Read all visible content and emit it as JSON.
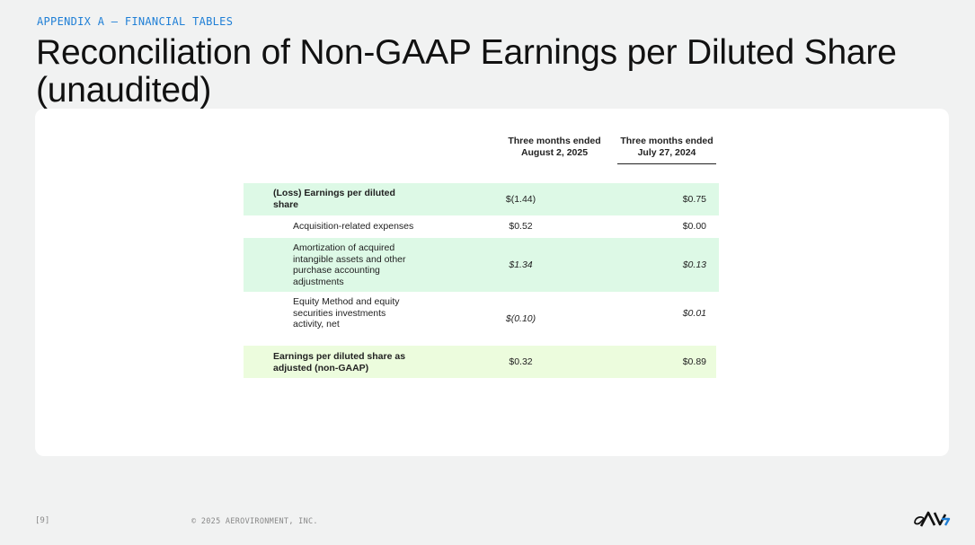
{
  "eyebrow": "APPENDIX A – FINANCIAL TABLES",
  "title": "Reconciliation of Non-GAAP Earnings per Diluted Share (unaudited)",
  "table": {
    "columns": [
      {
        "line1": "Three months ended",
        "line2": "August 2, 2025"
      },
      {
        "line1": "Three months ended",
        "line2": "July 27, 2024"
      }
    ],
    "rows": [
      {
        "label": "(Loss) Earnings per diluted share",
        "v1": "$(1.44)",
        "v2": "$0.75"
      },
      {
        "label": "Acquisition-related expenses",
        "v1": "$0.52",
        "v2": "$0.00"
      },
      {
        "label": "Amortization of acquired intangible assets and other purchase accounting adjustments",
        "v1": "$1.34",
        "v2": "$0.13"
      },
      {
        "label": "Equity Method and equity securities investments activity, net",
        "v1": "$(0.10)",
        "v2": "$0.01"
      },
      {
        "label": "Earnings per diluted share as adjusted (non-GAAP)",
        "v1": "$0.32",
        "v2": "$0.89"
      }
    ]
  },
  "footer": {
    "page": "[9]",
    "copyright": "© 2025 AEROVIRONMENT, INC.",
    "logo_icon": "av-logo-icon"
  },
  "colors": {
    "accent": "#1f7fd6",
    "row_green": "#ddf9e6",
    "row_lime": "#ecfcdd"
  }
}
